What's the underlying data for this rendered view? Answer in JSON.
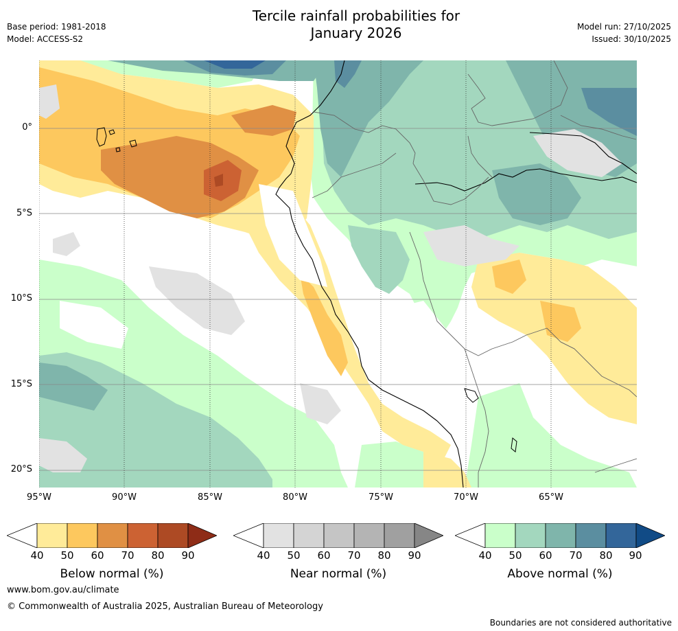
{
  "header": {
    "title_line1": "Tercile rainfall probabilities for",
    "title_line2": "January 2026",
    "base_period": "Base period: 1981-2018",
    "model": "Model: ACCESS-S2",
    "model_run": "Model run: 27/10/2025",
    "issued": "Issued: 30/10/2025"
  },
  "axes": {
    "lat_labels": [
      "0°",
      "5°S",
      "10°S",
      "15°S",
      "20°S"
    ],
    "lon_labels": [
      "95°W",
      "90°W",
      "85°W",
      "80°W",
      "75°W",
      "70°W",
      "65°W"
    ]
  },
  "legends": [
    {
      "title": "Below normal (%)",
      "ticks": [
        "40",
        "50",
        "60",
        "70",
        "80",
        "90"
      ],
      "colors": [
        "#ffffff",
        "#ffeb99",
        "#fdc85e",
        "#e09044",
        "#cc6233",
        "#ad4a24",
        "#8e2c17"
      ]
    },
    {
      "title": "Near normal (%)",
      "ticks": [
        "40",
        "50",
        "60",
        "70",
        "80",
        "90"
      ],
      "colors": [
        "#ffffff",
        "#e2e2e2",
        "#d4d4d4",
        "#c5c5c5",
        "#b4b4b4",
        "#a0a0a0",
        "#868686"
      ]
    },
    {
      "title": "Above normal (%)",
      "ticks": [
        "40",
        "50",
        "60",
        "70",
        "80",
        "90"
      ],
      "colors": [
        "#ffffff",
        "#caffca",
        "#a3d7be",
        "#7fb5ab",
        "#5b8ea0",
        "#33669a",
        "#114b86"
      ]
    }
  ],
  "footer": {
    "website": "www.bom.gov.au/climate",
    "copyright": "© Commonwealth of Australia 2025, Australian Bureau of Meteorology",
    "disclaimer": "Boundaries are not considered authoritative"
  }
}
